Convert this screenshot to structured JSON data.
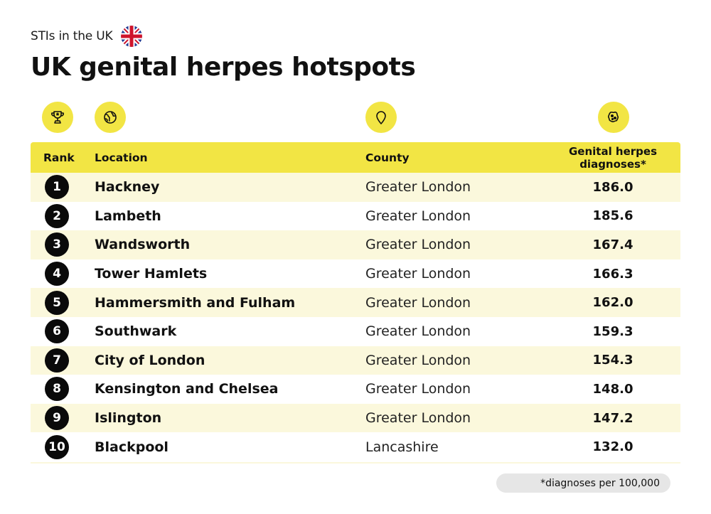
{
  "header": {
    "subtitle": "STIs in the UK",
    "title": "UK genital herpes hotspots"
  },
  "icons": {
    "flag": "uk-flag-icon",
    "rank": "trophy-icon",
    "location": "globe-icon",
    "county": "map-pin-icon",
    "diagnoses": "virus-icon"
  },
  "colors": {
    "accent": "#f2e544",
    "row_tint": "#fbf8dc",
    "badge": "#0a0a0a",
    "footnote_bg": "#e6e6e6"
  },
  "chart_data": {
    "type": "table",
    "columns": [
      "Rank",
      "Location",
      "County",
      "Genital herpes diagnoses*"
    ],
    "rows": [
      {
        "rank": "1",
        "location": "Hackney",
        "county": "Greater London",
        "value": "186.0"
      },
      {
        "rank": "2",
        "location": "Lambeth",
        "county": "Greater London",
        "value": "185.6"
      },
      {
        "rank": "3",
        "location": "Wandsworth",
        "county": "Greater London",
        "value": "167.4"
      },
      {
        "rank": "4",
        "location": "Tower Hamlets",
        "county": "Greater London",
        "value": "166.3"
      },
      {
        "rank": "5",
        "location": "Hammersmith and Fulham",
        "county": "Greater London",
        "value": "162.0"
      },
      {
        "rank": "6",
        "location": "Southwark",
        "county": "Greater London",
        "value": "159.3"
      },
      {
        "rank": "7",
        "location": "City of London",
        "county": "Greater London",
        "value": "154.3"
      },
      {
        "rank": "8",
        "location": "Kensington and Chelsea",
        "county": "Greater London",
        "value": "148.0"
      },
      {
        "rank": "9",
        "location": "Islington",
        "county": "Greater London",
        "value": "147.2"
      },
      {
        "rank": "10",
        "location": "Blackpool",
        "county": "Lancashire",
        "value": "132.0"
      }
    ],
    "footnote": "*diagnoses per 100,000"
  }
}
